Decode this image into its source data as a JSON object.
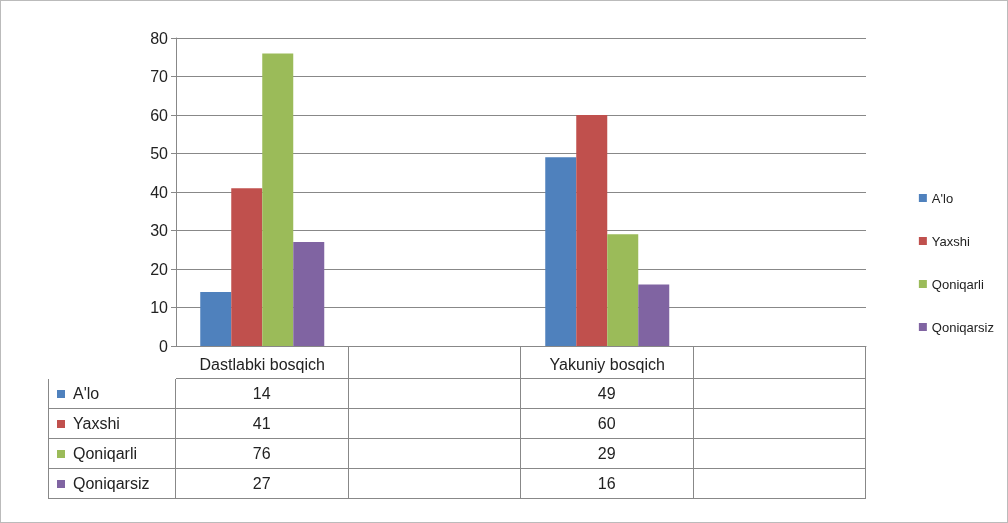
{
  "chart_data": {
    "type": "bar",
    "categories": [
      "Dastlabki bosqich",
      null,
      "Yakuniy bosqich",
      null
    ],
    "series": [
      {
        "name": "A'lo",
        "color": "#4f81bd",
        "values": [
          14,
          null,
          49,
          null
        ]
      },
      {
        "name": "Yaxshi",
        "color": "#c0504d",
        "values": [
          41,
          null,
          60,
          null
        ]
      },
      {
        "name": "Qoniqarli",
        "color": "#9bbb59",
        "values": [
          76,
          null,
          29,
          null
        ]
      },
      {
        "name": "Qoniqarsiz",
        "color": "#8064a2",
        "values": [
          27,
          null,
          16,
          null
        ]
      }
    ],
    "ylim": [
      0,
      80
    ],
    "yticks": [
      0,
      10,
      20,
      30,
      40,
      50,
      60,
      70,
      80
    ],
    "grid": "y",
    "legend": "right",
    "data_labels": true
  }
}
